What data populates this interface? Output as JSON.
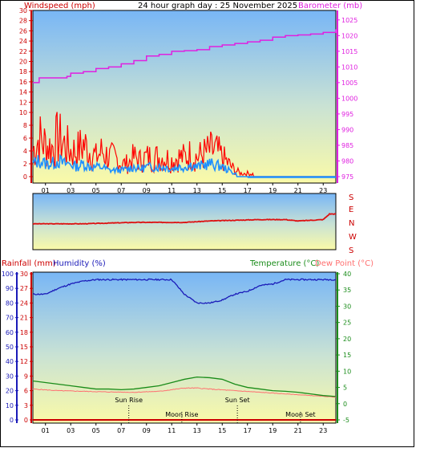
{
  "title": "24 hour graph day : 25 November 2025",
  "wind_label": "Windspeed (mph)",
  "baro_label": "Barometer (mb)",
  "rain_label": "Rainfall (mm)",
  "hum_label": "Humidity (%)",
  "temp_label": "Temperature (°C)",
  "dew_label": "Dew Point (°C)",
  "compass": [
    "S",
    "E",
    "N",
    "W",
    "S"
  ],
  "events": [
    {
      "label": "Sun Rise",
      "hour": 7.6,
      "row": "upper"
    },
    {
      "label": "Moon Rise",
      "hour": 11.8,
      "row": "lower"
    },
    {
      "label": "Sun Set",
      "hour": 16.2,
      "row": "upper"
    },
    {
      "label": "Moon Set",
      "hour": 21.2,
      "row": "lower"
    }
  ],
  "colors": {
    "wind_axis": "#cc0000",
    "gust": "#ff0000",
    "avg_wind": "#1e90ff",
    "baro": "#e020e0",
    "humidity": "#1a1ab8",
    "temperature": "#1a8c1a",
    "dewpoint": "#ff7070",
    "rain": "#cc0000",
    "direction": "#dd1111"
  },
  "chart_data": [
    {
      "type": "line",
      "title": "24 hour graph day : 25 November 2025",
      "x_ticks": [
        "01",
        "03",
        "05",
        "07",
        "09",
        "11",
        "13",
        "15",
        "17",
        "19",
        "21",
        "23"
      ],
      "left_axis": {
        "label": "Windspeed (mph)",
        "ticks": [
          "0",
          "2",
          "4",
          "6",
          "8",
          "10",
          "12",
          "14",
          "16",
          "18",
          "20",
          "22",
          "24",
          "26",
          "28",
          "30"
        ],
        "ylim": [
          0,
          30
        ],
        "nonlinear": true
      },
      "right_axis": {
        "label": "Barometer (mb)",
        "ticks": [
          "975",
          "980",
          "985",
          "990",
          "995",
          "1000",
          "1005",
          "1010",
          "1015",
          "1020",
          "1025"
        ],
        "ylim": [
          975,
          1027
        ]
      },
      "series": [
        {
          "name": "gust",
          "axis": "left",
          "points": [
            [
              0,
              4
            ],
            [
              0.5,
              6
            ],
            [
              1,
              5
            ],
            [
              1.5,
              4.5
            ],
            [
              2,
              6
            ],
            [
              2.5,
              5
            ],
            [
              3,
              4
            ],
            [
              3.5,
              4
            ],
            [
              4,
              5
            ],
            [
              4.5,
              4
            ],
            [
              5,
              3
            ],
            [
              5.5,
              4
            ],
            [
              6,
              3
            ],
            [
              6.5,
              3
            ],
            [
              7,
              2
            ],
            [
              7.5,
              2
            ],
            [
              8,
              3
            ],
            [
              8.5,
              2.5
            ],
            [
              9,
              3
            ],
            [
              9.5,
              3
            ],
            [
              10,
              3
            ],
            [
              10.5,
              3
            ],
            [
              11,
              2.5
            ],
            [
              11.5,
              3
            ],
            [
              12,
              3
            ],
            [
              12.5,
              3.5
            ],
            [
              13,
              3
            ],
            [
              13.5,
              3.5
            ],
            [
              14,
              4
            ],
            [
              14.5,
              4
            ],
            [
              15,
              3
            ],
            [
              15.5,
              2
            ],
            [
              16,
              1
            ],
            [
              16.5,
              0.5
            ],
            [
              17,
              0.5
            ],
            [
              18,
              0.3
            ],
            [
              19,
              0.3
            ],
            [
              20,
              0.2
            ],
            [
              21,
              0.1
            ],
            [
              22,
              0.2
            ],
            [
              23,
              0.1
            ],
            [
              24,
              0.1
            ]
          ]
        },
        {
          "name": "wind",
          "axis": "left",
          "points": [
            [
              0,
              2
            ],
            [
              0.5,
              2.5
            ],
            [
              1,
              2
            ],
            [
              1.5,
              2
            ],
            [
              2,
              2.5
            ],
            [
              2.5,
              2
            ],
            [
              3,
              2
            ],
            [
              3.5,
              1.5
            ],
            [
              4,
              2
            ],
            [
              4.5,
              1.5
            ],
            [
              5,
              1.5
            ],
            [
              5.5,
              1.5
            ],
            [
              6,
              1
            ],
            [
              6.5,
              1
            ],
            [
              7,
              1
            ],
            [
              7.5,
              1.2
            ],
            [
              8,
              1.5
            ],
            [
              8.5,
              1.2
            ],
            [
              9,
              1.5
            ],
            [
              9.5,
              1.5
            ],
            [
              10,
              1.5
            ],
            [
              10.5,
              1.5
            ],
            [
              11,
              1.2
            ],
            [
              11.5,
              1.5
            ],
            [
              12,
              1.5
            ],
            [
              12.5,
              1.8
            ],
            [
              13,
              1.5
            ],
            [
              13.5,
              1.8
            ],
            [
              14,
              2
            ],
            [
              14.5,
              1.8
            ],
            [
              15,
              1.5
            ],
            [
              15.5,
              1
            ],
            [
              16,
              0.5
            ],
            [
              16.5,
              0.2
            ],
            [
              17,
              0.1
            ],
            [
              24,
              0
            ]
          ]
        },
        {
          "name": "barometer",
          "axis": "right",
          "points": [
            [
              0,
              1005
            ],
            [
              0.5,
              1006.5
            ],
            [
              2,
              1006.5
            ],
            [
              2.7,
              1007
            ],
            [
              3,
              1008
            ],
            [
              4,
              1008.5
            ],
            [
              5,
              1009.5
            ],
            [
              6,
              1010
            ],
            [
              7,
              1011
            ],
            [
              8,
              1012
            ],
            [
              9,
              1013.5
            ],
            [
              10,
              1014
            ],
            [
              11,
              1015
            ],
            [
              12,
              1015.2
            ],
            [
              13,
              1015.5
            ],
            [
              14,
              1016.5
            ],
            [
              15,
              1017
            ],
            [
              16,
              1017.5
            ],
            [
              17,
              1018
            ],
            [
              18,
              1018.5
            ],
            [
              19,
              1019.5
            ],
            [
              20,
              1020
            ],
            [
              21,
              1020.2
            ],
            [
              22,
              1020.5
            ],
            [
              23,
              1021
            ],
            [
              24,
              1022
            ]
          ]
        }
      ]
    },
    {
      "type": "line",
      "title": "",
      "compass_ticks": [
        "S",
        "E",
        "N",
        "W",
        "S"
      ],
      "series": [
        {
          "name": "direction",
          "points": [
            [
              0,
              -0.05
            ],
            [
              4,
              -0.05
            ],
            [
              8,
              0
            ],
            [
              12,
              0
            ],
            [
              14,
              0.05
            ],
            [
              18,
              0.1
            ],
            [
              20,
              0.1
            ],
            [
              21,
              0.05
            ],
            [
              23,
              0.1
            ],
            [
              23.5,
              0.3
            ],
            [
              24,
              0.3
            ]
          ]
        }
      ]
    },
    {
      "type": "line",
      "title": "",
      "x_ticks": [
        "01",
        "03",
        "05",
        "07",
        "09",
        "11",
        "13",
        "15",
        "17",
        "19",
        "21",
        "23"
      ],
      "rain_axis": {
        "label": "Rainfall (mm)",
        "ticks": [
          "0",
          "3",
          "6",
          "9",
          "12",
          "15",
          "18",
          "21",
          "24",
          "27",
          "30"
        ],
        "ylim": [
          0,
          30
        ]
      },
      "humidity_axis": {
        "label": "Humidity (%)",
        "ticks": [
          "0",
          "10",
          "20",
          "30",
          "40",
          "50",
          "60",
          "70",
          "80",
          "90",
          "100"
        ],
        "ylim": [
          0,
          100
        ]
      },
      "temp_axis": {
        "label": "Temperature (°C)",
        "ticks": [
          "-5",
          "0",
          "5",
          "10",
          "15",
          "20",
          "25",
          "30",
          "35",
          "40"
        ],
        "ylim": [
          -5,
          40
        ]
      },
      "series": [
        {
          "name": "humidity",
          "axis": "humidity",
          "points": [
            [
              0,
              86
            ],
            [
              1,
              86
            ],
            [
              2,
              90
            ],
            [
              3,
              93
            ],
            [
              4,
              95
            ],
            [
              5,
              96
            ],
            [
              6,
              96
            ],
            [
              7,
              96
            ],
            [
              8,
              96
            ],
            [
              9,
              96
            ],
            [
              10,
              96
            ],
            [
              11,
              96
            ],
            [
              12,
              86
            ],
            [
              13,
              80
            ],
            [
              14,
              80
            ],
            [
              15,
              82
            ],
            [
              16,
              86
            ],
            [
              17,
              88
            ],
            [
              18,
              92
            ],
            [
              19,
              93
            ],
            [
              20,
              96
            ],
            [
              21,
              96
            ],
            [
              22,
              96
            ],
            [
              23,
              96
            ],
            [
              24,
              96
            ]
          ]
        },
        {
          "name": "temperature",
          "axis": "temp",
          "points": [
            [
              0,
              7
            ],
            [
              1,
              6.5
            ],
            [
              2,
              6
            ],
            [
              3,
              5.5
            ],
            [
              4,
              5
            ],
            [
              5,
              4.5
            ],
            [
              6,
              4.5
            ],
            [
              7,
              4.3
            ],
            [
              8,
              4.5
            ],
            [
              9,
              5
            ],
            [
              10,
              5.5
            ],
            [
              11,
              6.5
            ],
            [
              12,
              7.5
            ],
            [
              13,
              8.2
            ],
            [
              14,
              8
            ],
            [
              15,
              7.5
            ],
            [
              16,
              6
            ],
            [
              17,
              5
            ],
            [
              18,
              4.5
            ],
            [
              19,
              4
            ],
            [
              20,
              3.8
            ],
            [
              21,
              3.5
            ],
            [
              22,
              3
            ],
            [
              23,
              2.5
            ],
            [
              24,
              2.2
            ]
          ]
        },
        {
          "name": "dewpoint",
          "axis": "temp",
          "points": [
            [
              0,
              4.5
            ],
            [
              2,
              4
            ],
            [
              4,
              3.8
            ],
            [
              6,
              3.6
            ],
            [
              8,
              3.5
            ],
            [
              10,
              3.8
            ],
            [
              12,
              4.8
            ],
            [
              13,
              4.8
            ],
            [
              14,
              4.5
            ],
            [
              16,
              4
            ],
            [
              18,
              3.5
            ],
            [
              20,
              3
            ],
            [
              22,
              2.5
            ],
            [
              24,
              2
            ]
          ]
        },
        {
          "name": "rainfall",
          "axis": "rain",
          "points": [
            [
              0,
              0
            ],
            [
              24,
              0
            ]
          ]
        }
      ]
    }
  ]
}
